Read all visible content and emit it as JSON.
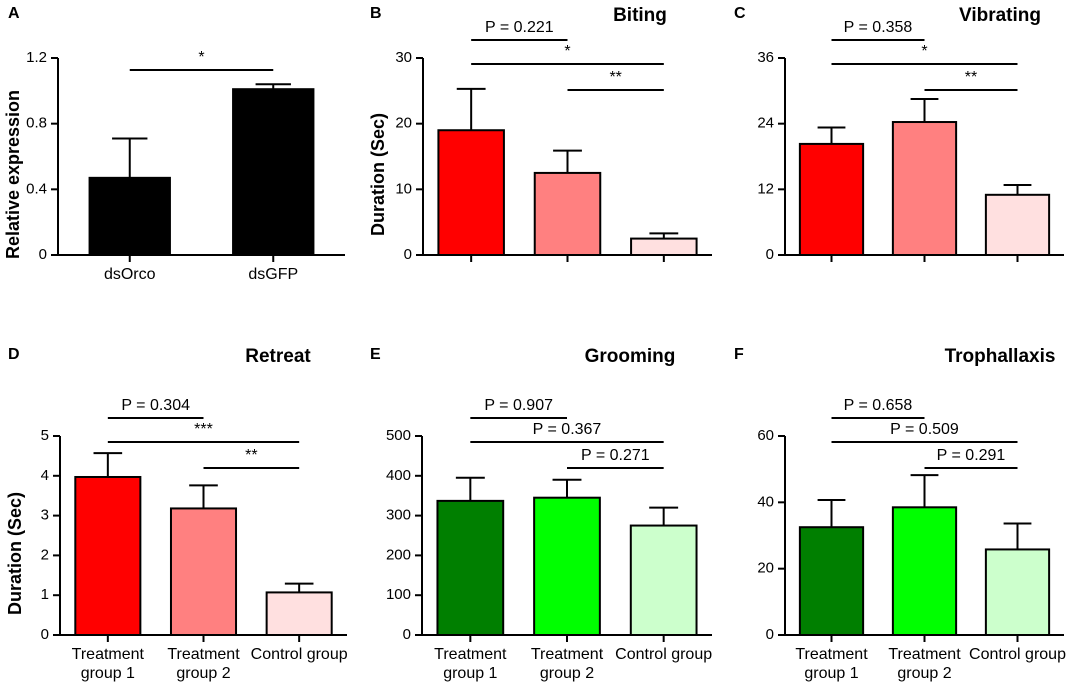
{
  "chart_data": [
    {
      "type": "bar",
      "panel_label": "A",
      "ylabel": "Relative expression",
      "categories": [
        "dsOrco",
        "dsGFP"
      ],
      "values": [
        0.47,
        1.01
      ],
      "errors": [
        0.24,
        0.03
      ],
      "colors": [
        "#000000",
        "#000000"
      ],
      "ylim": [
        0,
        1.2
      ],
      "yticks": [
        0,
        0.4,
        0.8,
        1.2
      ],
      "annotations": [
        "*"
      ]
    },
    {
      "type": "bar",
      "panel_label": "B",
      "title": "Biting",
      "ylabel": "Duration (Sec)",
      "values": [
        19,
        12.5,
        2.5
      ],
      "errors": [
        6.3,
        3.4,
        0.8
      ],
      "colors": [
        "#ff0000",
        "#ff8080",
        "#ffe0e0"
      ],
      "ylim": [
        0,
        30
      ],
      "yticks": [
        0,
        10,
        20,
        30
      ],
      "annotations": [
        "P = 0.221",
        "*",
        "**"
      ]
    },
    {
      "type": "bar",
      "panel_label": "C",
      "title": "Vibrating",
      "values": [
        20.3,
        24.3,
        11
      ],
      "errors": [
        3,
        4.2,
        1.8
      ],
      "colors": [
        "#ff0000",
        "#ff8080",
        "#ffe0e0"
      ],
      "ylim": [
        0,
        36
      ],
      "yticks": [
        0,
        12,
        24,
        36
      ],
      "annotations": [
        "P = 0.358",
        "*",
        "**"
      ]
    },
    {
      "type": "bar",
      "panel_label": "D",
      "title": "Retreat",
      "ylabel": "Duration (Sec)",
      "categories": [
        "Treatment group 1",
        "Treatment group 2",
        "Control group"
      ],
      "values": [
        3.97,
        3.18,
        1.07
      ],
      "errors": [
        0.6,
        0.58,
        0.22
      ],
      "colors": [
        "#ff0000",
        "#ff8080",
        "#ffe0e0"
      ],
      "ylim": [
        0,
        5
      ],
      "yticks": [
        0,
        1,
        2,
        3,
        4,
        5
      ],
      "annotations": [
        "P = 0.304",
        "***",
        "**"
      ]
    },
    {
      "type": "bar",
      "panel_label": "E",
      "title": "Grooming",
      "categories": [
        "Treatment group 1",
        "Treatment group 2",
        "Control group"
      ],
      "values": [
        337,
        345,
        275
      ],
      "errors": [
        58,
        45,
        45
      ],
      "colors": [
        "#007f00",
        "#00ff00",
        "#ccffcc"
      ],
      "ylim": [
        0,
        500
      ],
      "yticks": [
        0,
        100,
        200,
        300,
        400,
        500
      ],
      "annotations": [
        "P = 0.907",
        "P = 0.367",
        "P = 0.271"
      ]
    },
    {
      "type": "bar",
      "panel_label": "F",
      "title": "Trophallaxis",
      "categories": [
        "Treatment group 1",
        "Treatment group 2",
        "Control group"
      ],
      "values": [
        32.5,
        38.5,
        25.8
      ],
      "errors": [
        8.2,
        9.7,
        7.8
      ],
      "colors": [
        "#007f00",
        "#00ff00",
        "#ccffcc"
      ],
      "ylim": [
        0,
        60
      ],
      "yticks": [
        0,
        20,
        40,
        60
      ],
      "annotations": [
        "P = 0.658",
        "P = 0.509",
        "P = 0.291"
      ]
    }
  ]
}
